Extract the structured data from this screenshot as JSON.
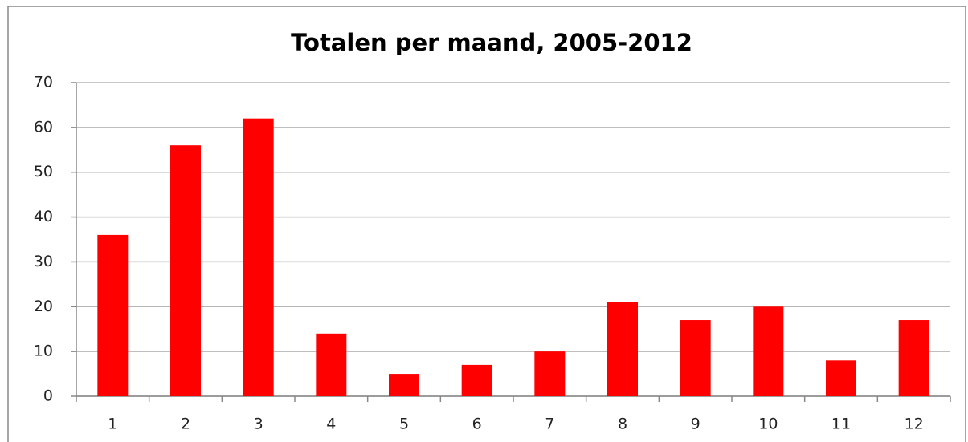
{
  "chart_data": {
    "type": "bar",
    "title": "Totalen per maand, 2005-2012",
    "categories": [
      "1",
      "2",
      "3",
      "4",
      "5",
      "6",
      "7",
      "8",
      "9",
      "10",
      "11",
      "12"
    ],
    "values": [
      36,
      56,
      62,
      14,
      5,
      7,
      10,
      21,
      17,
      20,
      8,
      17
    ],
    "color": "#ff0000",
    "ylim": [
      0,
      70
    ],
    "yticks": [
      0,
      10,
      20,
      30,
      40,
      50,
      60,
      70
    ],
    "grid": true
  }
}
